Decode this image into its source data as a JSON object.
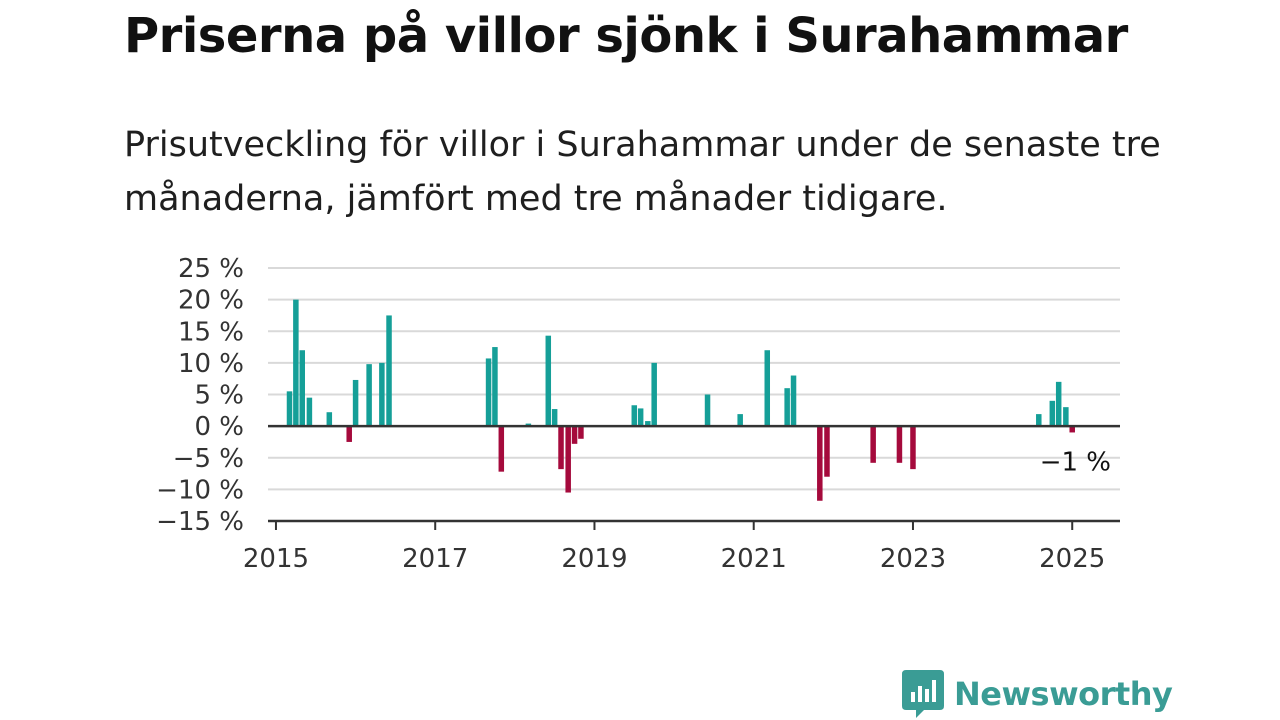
{
  "title": "Priserna på villor sjönk i Surahammar",
  "subtitle": "Prisutveckling för villor i Surahammar under de senaste tre månaderna, jämfört med tre månader tidigare.",
  "brand": {
    "name": "Newsworthy",
    "icon": "newsworthy-logo-icon"
  },
  "colors": {
    "positive": "#159f98",
    "negative": "#a50a3c",
    "grid": "#d9d9d9",
    "axis": "#333333",
    "brand": "#3a9c95"
  },
  "chart_data": {
    "type": "bar",
    "unit": "%",
    "ylim": [
      -15,
      25
    ],
    "yticks": [
      25,
      20,
      15,
      10,
      5,
      0,
      -5,
      -10,
      -15
    ],
    "ytick_labels": [
      "25 %",
      "20 %",
      "15 %",
      "10 %",
      "5 %",
      "0 %",
      "−5 %",
      "−10 %",
      "−15 %"
    ],
    "xlim": [
      2014.9,
      2025.6
    ],
    "xticks": [
      2015,
      2017,
      2019,
      2021,
      2023,
      2025
    ],
    "xtick_labels": [
      "2015",
      "2017",
      "2019",
      "2021",
      "2023",
      "2025"
    ],
    "grid": true,
    "annotation": {
      "x": 2025.0,
      "y": -1,
      "label": "−1 %"
    },
    "points": [
      {
        "x": 2015.17,
        "y": 5.5
      },
      {
        "x": 2015.25,
        "y": 20.0
      },
      {
        "x": 2015.33,
        "y": 12.0
      },
      {
        "x": 2015.42,
        "y": 4.5
      },
      {
        "x": 2015.67,
        "y": 2.2
      },
      {
        "x": 2015.92,
        "y": -2.5
      },
      {
        "x": 2016.0,
        "y": 7.3
      },
      {
        "x": 2016.17,
        "y": 9.8
      },
      {
        "x": 2016.33,
        "y": 10.0
      },
      {
        "x": 2016.42,
        "y": 17.5
      },
      {
        "x": 2017.67,
        "y": 10.7
      },
      {
        "x": 2017.75,
        "y": 12.5
      },
      {
        "x": 2017.83,
        "y": -7.2
      },
      {
        "x": 2018.17,
        "y": 0.4
      },
      {
        "x": 2018.42,
        "y": 14.3
      },
      {
        "x": 2018.5,
        "y": 2.7
      },
      {
        "x": 2018.58,
        "y": -6.8
      },
      {
        "x": 2018.67,
        "y": -10.5
      },
      {
        "x": 2018.75,
        "y": -2.8
      },
      {
        "x": 2018.83,
        "y": -2.0
      },
      {
        "x": 2019.5,
        "y": 3.3
      },
      {
        "x": 2019.58,
        "y": 2.8
      },
      {
        "x": 2019.67,
        "y": 0.8
      },
      {
        "x": 2019.75,
        "y": 10.0
      },
      {
        "x": 2020.42,
        "y": 5.0
      },
      {
        "x": 2020.83,
        "y": 1.9
      },
      {
        "x": 2021.17,
        "y": 12.0
      },
      {
        "x": 2021.42,
        "y": 6.0
      },
      {
        "x": 2021.5,
        "y": 8.0
      },
      {
        "x": 2021.83,
        "y": -11.8
      },
      {
        "x": 2021.92,
        "y": -8.0
      },
      {
        "x": 2022.5,
        "y": -5.8
      },
      {
        "x": 2022.83,
        "y": -5.8
      },
      {
        "x": 2023.0,
        "y": -6.8
      },
      {
        "x": 2024.58,
        "y": 1.9
      },
      {
        "x": 2024.75,
        "y": 4.0
      },
      {
        "x": 2024.83,
        "y": 7.0
      },
      {
        "x": 2024.92,
        "y": 3.0
      },
      {
        "x": 2025.0,
        "y": -1.0
      }
    ]
  }
}
